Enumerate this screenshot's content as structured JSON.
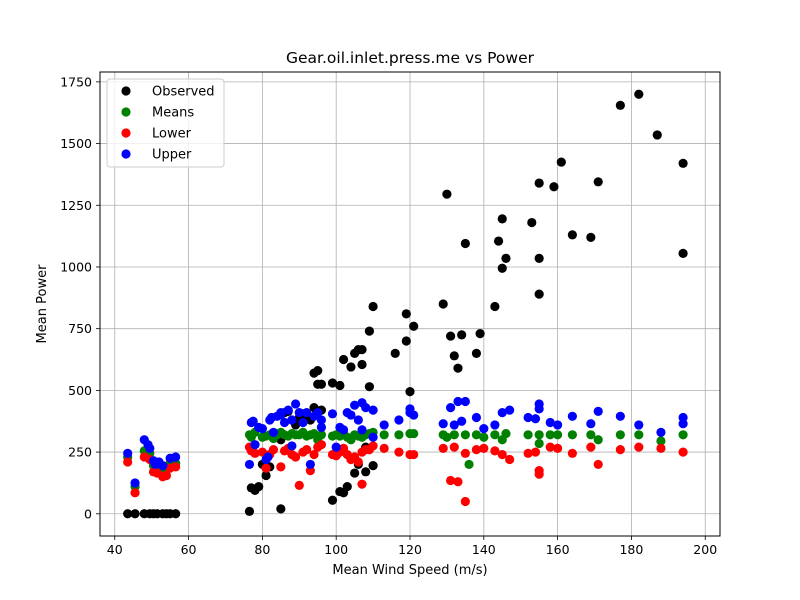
{
  "chart_data": {
    "type": "scatter",
    "title": "Gear.oil.inlet.press.me vs Power",
    "xlabel": "Mean Wind Speed (m/s)",
    "ylabel": "Mean Power",
    "xlim": [
      36,
      204
    ],
    "ylim": [
      -90,
      1790
    ],
    "xticks": [
      40,
      60,
      80,
      100,
      120,
      140,
      160,
      180,
      200
    ],
    "yticks": [
      0,
      250,
      500,
      750,
      1000,
      1250,
      1500,
      1750
    ],
    "grid": true,
    "legend_position": "top-left",
    "series": [
      {
        "name": "Observed",
        "color": "#000000",
        "points": [
          [
            43.5,
            0
          ],
          [
            45.5,
            0
          ],
          [
            48,
            0
          ],
          [
            49.5,
            0
          ],
          [
            50.5,
            0
          ],
          [
            51.5,
            0
          ],
          [
            53,
            0
          ],
          [
            54,
            0
          ],
          [
            55,
            0
          ],
          [
            56.5,
            0
          ],
          [
            76.5,
            10
          ],
          [
            77,
            105
          ],
          [
            78,
            95
          ],
          [
            79,
            110
          ],
          [
            80,
            200
          ],
          [
            81,
            155
          ],
          [
            82,
            190
          ],
          [
            85,
            20
          ],
          [
            85,
            300
          ],
          [
            86,
            410
          ],
          [
            87,
            415
          ],
          [
            88,
            380
          ],
          [
            89,
            360
          ],
          [
            90,
            390
          ],
          [
            91,
            405
          ],
          [
            92,
            385
          ],
          [
            93,
            380
          ],
          [
            94,
            570
          ],
          [
            94,
            430
          ],
          [
            95,
            525
          ],
          [
            95,
            580
          ],
          [
            96,
            525
          ],
          [
            96,
            420
          ],
          [
            99,
            55
          ],
          [
            99,
            530
          ],
          [
            101,
            90
          ],
          [
            101,
            520
          ],
          [
            102,
            85
          ],
          [
            102,
            625
          ],
          [
            103,
            110
          ],
          [
            104,
            595
          ],
          [
            105,
            165
          ],
          [
            105,
            650
          ],
          [
            106,
            665
          ],
          [
            106,
            200
          ],
          [
            107,
            665
          ],
          [
            107,
            605
          ],
          [
            108,
            270
          ],
          [
            108,
            170
          ],
          [
            109,
            515
          ],
          [
            109,
            740
          ],
          [
            110,
            195
          ],
          [
            110,
            840
          ],
          [
            116,
            650
          ],
          [
            119,
            810
          ],
          [
            119,
            700
          ],
          [
            120,
            495
          ],
          [
            121,
            760
          ],
          [
            129,
            850
          ],
          [
            130,
            1295
          ],
          [
            131,
            720
          ],
          [
            132,
            640
          ],
          [
            133,
            590
          ],
          [
            134,
            725
          ],
          [
            135,
            1095
          ],
          [
            138,
            650
          ],
          [
            139,
            730
          ],
          [
            143,
            840
          ],
          [
            144,
            1105
          ],
          [
            145,
            1195
          ],
          [
            145,
            995
          ],
          [
            146,
            1035
          ],
          [
            153,
            1180
          ],
          [
            155,
            890
          ],
          [
            155,
            1035
          ],
          [
            155,
            1340
          ],
          [
            159,
            1325
          ],
          [
            161,
            1425
          ],
          [
            164,
            1130
          ],
          [
            169,
            1120
          ],
          [
            171,
            1345
          ],
          [
            177,
            1655
          ],
          [
            182,
            1700
          ],
          [
            187,
            1535
          ],
          [
            194,
            1420
          ],
          [
            194,
            1055
          ]
        ]
      },
      {
        "name": "Means",
        "color": "#008000",
        "points": [
          [
            43.5,
            230
          ],
          [
            45.5,
            110
          ],
          [
            48,
            255
          ],
          [
            49.5,
            245
          ],
          [
            50.5,
            195
          ],
          [
            51.5,
            190
          ],
          [
            53,
            175
          ],
          [
            54,
            180
          ],
          [
            55,
            205
          ],
          [
            56.5,
            205
          ],
          [
            76.5,
            320
          ],
          [
            77,
            310
          ],
          [
            78,
            330
          ],
          [
            80,
            310
          ],
          [
            81,
            315
          ],
          [
            82,
            320
          ],
          [
            83,
            305
          ],
          [
            84,
            320
          ],
          [
            85,
            330
          ],
          [
            86,
            320
          ],
          [
            87,
            315
          ],
          [
            88,
            325
          ],
          [
            89,
            320
          ],
          [
            90,
            320
          ],
          [
            91,
            330
          ],
          [
            92,
            315
          ],
          [
            93,
            320
          ],
          [
            94,
            325
          ],
          [
            95,
            300
          ],
          [
            96,
            320
          ],
          [
            99,
            315
          ],
          [
            100,
            320
          ],
          [
            101,
            315
          ],
          [
            102,
            325
          ],
          [
            103,
            310
          ],
          [
            104,
            300
          ],
          [
            105,
            320
          ],
          [
            106,
            315
          ],
          [
            107,
            310
          ],
          [
            108,
            320
          ],
          [
            109,
            325
          ],
          [
            110,
            330
          ],
          [
            113,
            320
          ],
          [
            117,
            320
          ],
          [
            120,
            325
          ],
          [
            121,
            325
          ],
          [
            129,
            320
          ],
          [
            130,
            310
          ],
          [
            132,
            320
          ],
          [
            135,
            320
          ],
          [
            136,
            200
          ],
          [
            138,
            320
          ],
          [
            140,
            310
          ],
          [
            143,
            320
          ],
          [
            145,
            300
          ],
          [
            146,
            325
          ],
          [
            152,
            320
          ],
          [
            155,
            320
          ],
          [
            155,
            285
          ],
          [
            158,
            320
          ],
          [
            160,
            320
          ],
          [
            164,
            320
          ],
          [
            169,
            320
          ],
          [
            171,
            300
          ],
          [
            177,
            320
          ],
          [
            182,
            320
          ],
          [
            188,
            295
          ],
          [
            194,
            320
          ]
        ]
      },
      {
        "name": "Lower",
        "color": "#ff0000",
        "points": [
          [
            43.5,
            210
          ],
          [
            45.5,
            85
          ],
          [
            48,
            230
          ],
          [
            49.5,
            220
          ],
          [
            50.5,
            170
          ],
          [
            51.5,
            165
          ],
          [
            53,
            150
          ],
          [
            54,
            155
          ],
          [
            55,
            185
          ],
          [
            56.5,
            190
          ],
          [
            76.5,
            270
          ],
          [
            77,
            255
          ],
          [
            78,
            245
          ],
          [
            80,
            250
          ],
          [
            81,
            185
          ],
          [
            82,
            240
          ],
          [
            83,
            260
          ],
          [
            85,
            190
          ],
          [
            86,
            255
          ],
          [
            87,
            265
          ],
          [
            88,
            240
          ],
          [
            89,
            230
          ],
          [
            90,
            115
          ],
          [
            91,
            250
          ],
          [
            92,
            260
          ],
          [
            93,
            175
          ],
          [
            94,
            240
          ],
          [
            95,
            270
          ],
          [
            96,
            280
          ],
          [
            99,
            240
          ],
          [
            100,
            235
          ],
          [
            101,
            250
          ],
          [
            102,
            265
          ],
          [
            103,
            240
          ],
          [
            104,
            220
          ],
          [
            105,
            230
          ],
          [
            106,
            210
          ],
          [
            107,
            250
          ],
          [
            107,
            120
          ],
          [
            108,
            260
          ],
          [
            109,
            260
          ],
          [
            110,
            275
          ],
          [
            113,
            265
          ],
          [
            117,
            250
          ],
          [
            120,
            240
          ],
          [
            121,
            240
          ],
          [
            129,
            265
          ],
          [
            131,
            135
          ],
          [
            132,
            270
          ],
          [
            133,
            130
          ],
          [
            135,
            245
          ],
          [
            135,
            50
          ],
          [
            138,
            260
          ],
          [
            140,
            265
          ],
          [
            143,
            255
          ],
          [
            145,
            240
          ],
          [
            147,
            220
          ],
          [
            152,
            245
          ],
          [
            154,
            250
          ],
          [
            155,
            175
          ],
          [
            155,
            160
          ],
          [
            158,
            270
          ],
          [
            160,
            265
          ],
          [
            164,
            245
          ],
          [
            169,
            270
          ],
          [
            171,
            200
          ],
          [
            177,
            260
          ],
          [
            182,
            270
          ],
          [
            188,
            265
          ],
          [
            194,
            250
          ]
        ]
      },
      {
        "name": "Upper",
        "color": "#0000ff",
        "points": [
          [
            43.5,
            245
          ],
          [
            45.5,
            125
          ],
          [
            48,
            300
          ],
          [
            49,
            280
          ],
          [
            49.5,
            265
          ],
          [
            50.5,
            215
          ],
          [
            51,
            200
          ],
          [
            52,
            210
          ],
          [
            53,
            195
          ],
          [
            55,
            225
          ],
          [
            56.5,
            230
          ],
          [
            76.5,
            200
          ],
          [
            77,
            370
          ],
          [
            77.5,
            375
          ],
          [
            78,
            280
          ],
          [
            79,
            350
          ],
          [
            80,
            345
          ],
          [
            81,
            220
          ],
          [
            81.5,
            230
          ],
          [
            82,
            380
          ],
          [
            82.5,
            390
          ],
          [
            83,
            330
          ],
          [
            84,
            395
          ],
          [
            85,
            410
          ],
          [
            85,
            400
          ],
          [
            86,
            370
          ],
          [
            87,
            420
          ],
          [
            88,
            275
          ],
          [
            88,
            380
          ],
          [
            89,
            445
          ],
          [
            90,
            410
          ],
          [
            91,
            370
          ],
          [
            92,
            410
          ],
          [
            93,
            200
          ],
          [
            94,
            395
          ],
          [
            95,
            410
          ],
          [
            96,
            380
          ],
          [
            96,
            350
          ],
          [
            99,
            405
          ],
          [
            100,
            270
          ],
          [
            101,
            350
          ],
          [
            102,
            340
          ],
          [
            103,
            410
          ],
          [
            104,
            400
          ],
          [
            105,
            440
          ],
          [
            106,
            380
          ],
          [
            107,
            450
          ],
          [
            107,
            340
          ],
          [
            108,
            430
          ],
          [
            110,
            420
          ],
          [
            110,
            310
          ],
          [
            113,
            360
          ],
          [
            117,
            380
          ],
          [
            120,
            425
          ],
          [
            120,
            410
          ],
          [
            121,
            400
          ],
          [
            129,
            365
          ],
          [
            131,
            430
          ],
          [
            132,
            360
          ],
          [
            133,
            455
          ],
          [
            134,
            375
          ],
          [
            135,
            455
          ],
          [
            138,
            390
          ],
          [
            140,
            345
          ],
          [
            143,
            360
          ],
          [
            145,
            410
          ],
          [
            147,
            420
          ],
          [
            152,
            390
          ],
          [
            154,
            385
          ],
          [
            155,
            445
          ],
          [
            155,
            425
          ],
          [
            158,
            370
          ],
          [
            160,
            360
          ],
          [
            164,
            395
          ],
          [
            169,
            365
          ],
          [
            171,
            415
          ],
          [
            177,
            395
          ],
          [
            182,
            360
          ],
          [
            188,
            330
          ],
          [
            194,
            390
          ],
          [
            194,
            365
          ]
        ]
      }
    ]
  }
}
